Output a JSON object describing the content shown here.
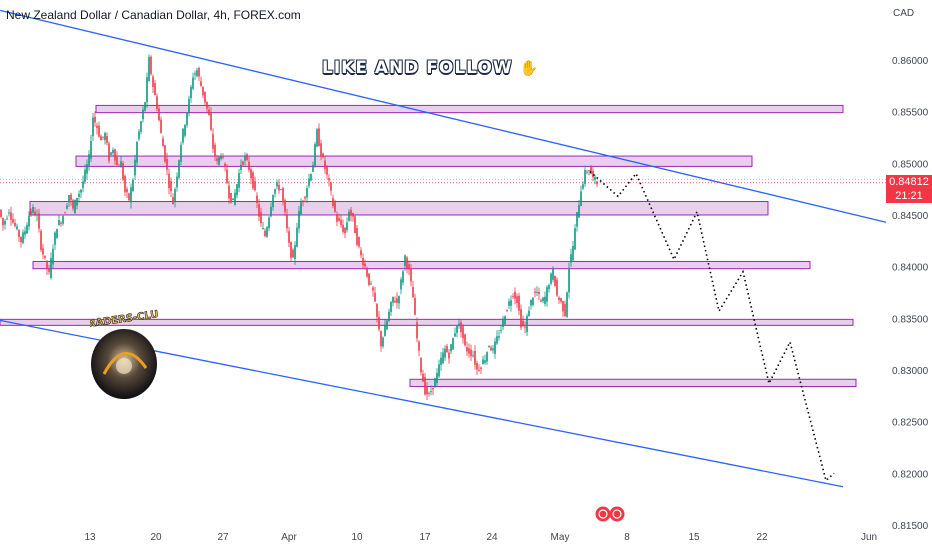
{
  "header": {
    "title": "New Zealand Dollar / Canadian Dollar, 4h, FOREX.com",
    "currency": "CAD"
  },
  "banner": {
    "text": "LIKE AND FOLLOW",
    "icon": "thumbs-up-icon"
  },
  "price_label": {
    "price": "0.84812",
    "countdown": "21:21",
    "color": "#f23645"
  },
  "logo": {
    "text": "TRADERS-CLUB"
  },
  "colors": {
    "up": "#089981",
    "down": "#f23645",
    "trendline": "#2962ff",
    "zone_fill": "#e1bee7",
    "zone_border": "#9c27b0",
    "projection": "#000000"
  },
  "chart_data": {
    "type": "candlestick",
    "title": "New Zealand Dollar / Canadian Dollar, 4h, FOREX.com",
    "xlabel": "",
    "ylabel": "",
    "ylim": [
      0.815,
      0.8658
    ],
    "x_ticks": [
      "13",
      "20",
      "27",
      "Apr",
      "10",
      "17",
      "24",
      "May",
      "8",
      "15",
      "22",
      "Jun"
    ],
    "y_ticks": [
      "0.86000",
      "0.85500",
      "0.85000",
      "0.84500",
      "0.84000",
      "0.83500",
      "0.83000",
      "0.82500",
      "0.82000",
      "0.81500"
    ],
    "last_price": 0.84812,
    "price_path": [
      [
        0,
        0.8455
      ],
      [
        4,
        0.844
      ],
      [
        8,
        0.845
      ],
      [
        10,
        0.8455
      ],
      [
        14,
        0.8443
      ],
      [
        18,
        0.8435
      ],
      [
        22,
        0.8425
      ],
      [
        26,
        0.8435
      ],
      [
        30,
        0.845
      ],
      [
        34,
        0.8455
      ],
      [
        38,
        0.8448
      ],
      [
        42,
        0.842
      ],
      [
        46,
        0.8405
      ],
      [
        50,
        0.8392
      ],
      [
        54,
        0.842
      ],
      [
        58,
        0.844
      ],
      [
        62,
        0.8445
      ],
      [
        66,
        0.8455
      ],
      [
        70,
        0.847
      ],
      [
        74,
        0.8455
      ],
      [
        78,
        0.8468
      ],
      [
        82,
        0.8475
      ],
      [
        86,
        0.849
      ],
      [
        90,
        0.8505
      ],
      [
        94,
        0.8545
      ],
      [
        98,
        0.8535
      ],
      [
        102,
        0.8522
      ],
      [
        106,
        0.8528
      ],
      [
        110,
        0.8505
      ],
      [
        114,
        0.8515
      ],
      [
        118,
        0.8498
      ],
      [
        122,
        0.85
      ],
      [
        126,
        0.8472
      ],
      [
        130,
        0.8465
      ],
      [
        134,
        0.8485
      ],
      [
        138,
        0.852
      ],
      [
        142,
        0.854
      ],
      [
        146,
        0.856
      ],
      [
        150,
        0.86
      ],
      [
        154,
        0.8575
      ],
      [
        158,
        0.8555
      ],
      [
        162,
        0.8528
      ],
      [
        166,
        0.8505
      ],
      [
        170,
        0.848
      ],
      [
        174,
        0.8462
      ],
      [
        178,
        0.849
      ],
      [
        182,
        0.852
      ],
      [
        186,
        0.854
      ],
      [
        190,
        0.856
      ],
      [
        194,
        0.8585
      ],
      [
        198,
        0.859
      ],
      [
        202,
        0.8575
      ],
      [
        206,
        0.856
      ],
      [
        210,
        0.8545
      ],
      [
        214,
        0.8515
      ],
      [
        218,
        0.85
      ],
      [
        222,
        0.851
      ],
      [
        226,
        0.8493
      ],
      [
        230,
        0.847
      ],
      [
        234,
        0.8462
      ],
      [
        238,
        0.848
      ],
      [
        242,
        0.85
      ],
      [
        246,
        0.8505
      ],
      [
        250,
        0.8495
      ],
      [
        254,
        0.848
      ],
      [
        258,
        0.846
      ],
      [
        262,
        0.844
      ],
      [
        266,
        0.843
      ],
      [
        270,
        0.845
      ],
      [
        274,
        0.8472
      ],
      [
        278,
        0.8478
      ],
      [
        282,
        0.8475
      ],
      [
        286,
        0.845
      ],
      [
        290,
        0.842
      ],
      [
        294,
        0.8405
      ],
      [
        298,
        0.844
      ],
      [
        302,
        0.8462
      ],
      [
        306,
        0.847
      ],
      [
        310,
        0.8485
      ],
      [
        314,
        0.85
      ],
      [
        318,
        0.853
      ],
      [
        322,
        0.851
      ],
      [
        326,
        0.8495
      ],
      [
        330,
        0.848
      ],
      [
        334,
        0.846
      ],
      [
        338,
        0.8445
      ],
      [
        342,
        0.844
      ],
      [
        346,
        0.8432
      ],
      [
        350,
        0.8455
      ],
      [
        354,
        0.8445
      ],
      [
        358,
        0.8425
      ],
      [
        362,
        0.841
      ],
      [
        366,
        0.84
      ],
      [
        370,
        0.8385
      ],
      [
        374,
        0.8375
      ],
      [
        378,
        0.835
      ],
      [
        382,
        0.8325
      ],
      [
        386,
        0.834
      ],
      [
        390,
        0.8355
      ],
      [
        394,
        0.837
      ],
      [
        398,
        0.8365
      ],
      [
        402,
        0.8385
      ],
      [
        406,
        0.841
      ],
      [
        410,
        0.8395
      ],
      [
        414,
        0.837
      ],
      [
        418,
        0.833
      ],
      [
        422,
        0.83
      ],
      [
        426,
        0.828
      ],
      [
        430,
        0.8275
      ],
      [
        434,
        0.8285
      ],
      [
        438,
        0.8295
      ],
      [
        442,
        0.831
      ],
      [
        446,
        0.832
      ],
      [
        450,
        0.8315
      ],
      [
        454,
        0.833
      ],
      [
        458,
        0.8345
      ],
      [
        462,
        0.834
      ],
      [
        466,
        0.8322
      ],
      [
        470,
        0.8318
      ],
      [
        474,
        0.8315
      ],
      [
        478,
        0.83
      ],
      [
        482,
        0.8305
      ],
      [
        486,
        0.8312
      ],
      [
        490,
        0.8325
      ],
      [
        494,
        0.8318
      ],
      [
        498,
        0.833
      ],
      [
        502,
        0.834
      ],
      [
        506,
        0.8355
      ],
      [
        510,
        0.8365
      ],
      [
        514,
        0.8375
      ],
      [
        518,
        0.8368
      ],
      [
        522,
        0.8345
      ],
      [
        526,
        0.834
      ],
      [
        530,
        0.836
      ],
      [
        534,
        0.8372
      ],
      [
        538,
        0.8375
      ],
      [
        542,
        0.8365
      ],
      [
        546,
        0.837
      ],
      [
        550,
        0.8385
      ],
      [
        554,
        0.8395
      ],
      [
        558,
        0.8372
      ],
      [
        562,
        0.8365
      ],
      [
        566,
        0.8355
      ],
      [
        570,
        0.84
      ],
      [
        574,
        0.842
      ],
      [
        578,
        0.845
      ],
      [
        582,
        0.8475
      ],
      [
        586,
        0.849
      ],
      [
        590,
        0.8495
      ],
      [
        594,
        0.8485
      ],
      [
        598,
        0.8481
      ]
    ],
    "zones": [
      {
        "x0": 96,
        "x1": 843,
        "low": 0.8549,
        "high": 0.8556
      },
      {
        "x0": 76,
        "x1": 752,
        "low": 0.8497,
        "high": 0.8507
      },
      {
        "x0": 30,
        "x1": 768,
        "low": 0.845,
        "high": 0.8463
      },
      {
        "x0": 33,
        "x1": 810,
        "low": 0.8398,
        "high": 0.8405
      },
      {
        "x0": 0,
        "x1": 853,
        "low": 0.8344,
        "high": 0.8349
      },
      {
        "x0": 410,
        "x1": 856,
        "low": 0.8284,
        "high": 0.8291
      }
    ],
    "trendlines": [
      {
        "x1": 0,
        "y1": 0.8648,
        "x2": 886,
        "y2": 0.8443
      },
      {
        "x1": 0,
        "y1": 0.8348,
        "x2": 843,
        "y2": 0.8187
      }
    ],
    "projection": [
      [
        590,
        0.8492
      ],
      [
        618,
        0.8468
      ],
      [
        636,
        0.849
      ],
      [
        674,
        0.8407
      ],
      [
        697,
        0.8453
      ],
      [
        719,
        0.8357
      ],
      [
        743,
        0.8395
      ],
      [
        769,
        0.8287
      ],
      [
        790,
        0.8327
      ],
      [
        826,
        0.8193
      ],
      [
        834,
        0.82
      ]
    ]
  }
}
